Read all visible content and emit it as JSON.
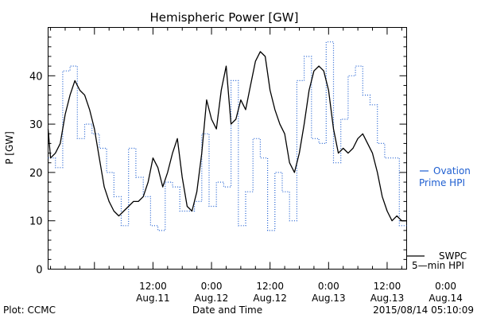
{
  "chart_data": {
    "type": "line",
    "title": "Hemispheric Power [GW]",
    "xlabel": "Date and Time",
    "ylabel": "P [GW]",
    "ylim": [
      0,
      50
    ],
    "xlim": [
      -9.5,
      64
    ],
    "x_unit": "hours from 2015-08-11 00:00",
    "y_ticks": [
      0,
      10,
      20,
      30,
      40
    ],
    "x_ticks": [
      {
        "x": 12,
        "line1": "12:00",
        "line2": "Aug.11"
      },
      {
        "x": 24,
        "line1": "0:00",
        "line2": "Aug.12"
      },
      {
        "x": 36,
        "line1": "12:00",
        "line2": "Aug.12"
      },
      {
        "x": 48,
        "line1": "0:00",
        "line2": "Aug.13"
      },
      {
        "x": 60,
        "line1": "12:00",
        "line2": "Aug.13"
      },
      {
        "x": 72,
        "line1": "0:00",
        "line2": "Aug.14"
      }
    ],
    "grid": false,
    "legend": "right",
    "series": [
      {
        "name": "Ovation Prime HPI",
        "label_line1": "Ovation",
        "label_line2": "Prime HPI",
        "style": "dotted-step",
        "color": "#1f5fd1",
        "x": [
          -9.5,
          -8,
          -6.5,
          -5,
          -3.5,
          -2,
          -0.5,
          1,
          2.5,
          4,
          5.5,
          7,
          8.5,
          10,
          11.5,
          13,
          14.5,
          16,
          17.5,
          19,
          20.5,
          22,
          23.5,
          25,
          26.5,
          28,
          29.5,
          31,
          32.5,
          34,
          35.5,
          37,
          38.5,
          40,
          41.5,
          43,
          44.5,
          46,
          47.5,
          49,
          50.5,
          52,
          53.5,
          55,
          56.5,
          58,
          59.5,
          61,
          62.5,
          64
        ],
        "y": [
          23,
          21,
          41,
          42,
          27,
          30,
          28,
          25,
          20,
          15,
          9,
          25,
          19,
          15,
          9,
          8,
          18,
          17,
          12,
          12,
          14,
          28,
          13,
          18,
          17,
          39,
          9,
          16,
          27,
          23,
          8,
          20,
          16,
          10,
          39,
          44,
          27,
          26,
          47,
          22,
          31,
          40,
          42,
          36,
          34,
          26,
          23,
          23,
          9,
          9
        ]
      },
      {
        "name": "SWPC 5-min HPI",
        "label_line1": "SWPC",
        "label_line2": "5—min HPI",
        "style": "solid",
        "color": "#000000",
        "x": [
          -9.5,
          -9,
          -8,
          -7,
          -6,
          -5,
          -4,
          -3,
          -2,
          -1,
          0,
          1,
          2,
          3,
          4,
          5,
          6,
          7,
          8,
          9,
          10,
          11,
          12,
          13,
          14,
          15,
          16,
          17,
          18,
          19,
          20,
          21,
          22,
          23,
          24,
          25,
          26,
          27,
          28,
          29,
          30,
          31,
          32,
          33,
          34,
          35,
          36,
          37,
          38,
          39,
          40,
          41,
          42,
          43,
          44,
          45,
          46,
          47,
          48,
          49,
          50,
          51,
          52,
          53,
          54,
          55,
          56,
          57,
          58,
          59,
          60,
          61,
          62,
          63,
          64
        ],
        "y": [
          29,
          23,
          24,
          26,
          32,
          36,
          39,
          37,
          36,
          33,
          29,
          23,
          17,
          14,
          12,
          11,
          12,
          13,
          14,
          14,
          15,
          18,
          23,
          21,
          17,
          20,
          24,
          27,
          19,
          13,
          12,
          16,
          24,
          35,
          31,
          29,
          37,
          42,
          30,
          31,
          35,
          33,
          38,
          43,
          45,
          44,
          37,
          33,
          30,
          28,
          22,
          20,
          24,
          30,
          37,
          41,
          42,
          41,
          37,
          29,
          24,
          25,
          24,
          25,
          27,
          28,
          26,
          24,
          20,
          15,
          12,
          10,
          11,
          10,
          10
        ]
      }
    ]
  },
  "footer": {
    "left": "Plot: CCMC",
    "right": "2015/08/14 05:10:09"
  }
}
